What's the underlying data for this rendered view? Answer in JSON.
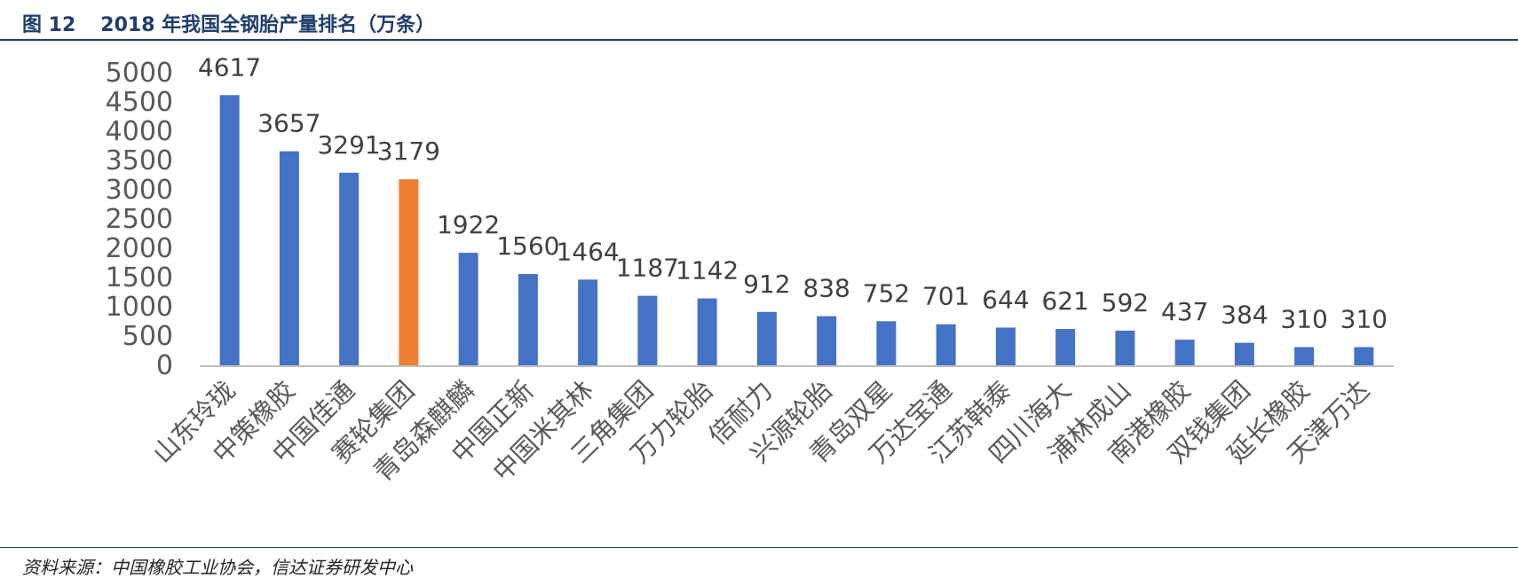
{
  "figure": {
    "number": "图 12",
    "title": "2018 年我国全钢胎产量排名（万条）",
    "source": "资料来源：中国橡胶工业协会，信达证券研发中心"
  },
  "chart_data": {
    "type": "bar",
    "categories": [
      "山东玲珑",
      "中策橡胶",
      "中国佳通",
      "赛轮集团",
      "青岛森麒麟",
      "中国正新",
      "中国米其林",
      "三角集团",
      "万力轮胎",
      "倍耐力",
      "兴源轮胎",
      "青岛双星",
      "万达宝通",
      "江苏韩泰",
      "四川海大",
      "浦林成山",
      "南港橡胶",
      "双钱集团",
      "延长橡胶",
      "天津万达"
    ],
    "values": [
      4617,
      3657,
      3291,
      3179,
      1922,
      1560,
      1464,
      1187,
      1142,
      912,
      838,
      752,
      701,
      644,
      621,
      592,
      437,
      384,
      310,
      310
    ],
    "data_labels": [
      "4617",
      "3657",
      "3291",
      "3179",
      "1922",
      "1560",
      "1464",
      "1187",
      "1142",
      "912",
      "838",
      "752",
      "701",
      "644",
      "621",
      "592",
      "437",
      "384",
      "310",
      "310"
    ],
    "highlight_index": 3,
    "colors": {
      "bar": "#4472C4",
      "highlight": "#ED7D31"
    },
    "ylim": [
      0,
      5000
    ],
    "yticks": [
      "0",
      "500",
      "1000",
      "1500",
      "2000",
      "2500",
      "3000",
      "3500",
      "4000",
      "4500",
      "5000"
    ],
    "grid": false,
    "xlabel": "",
    "ylabel": ""
  }
}
